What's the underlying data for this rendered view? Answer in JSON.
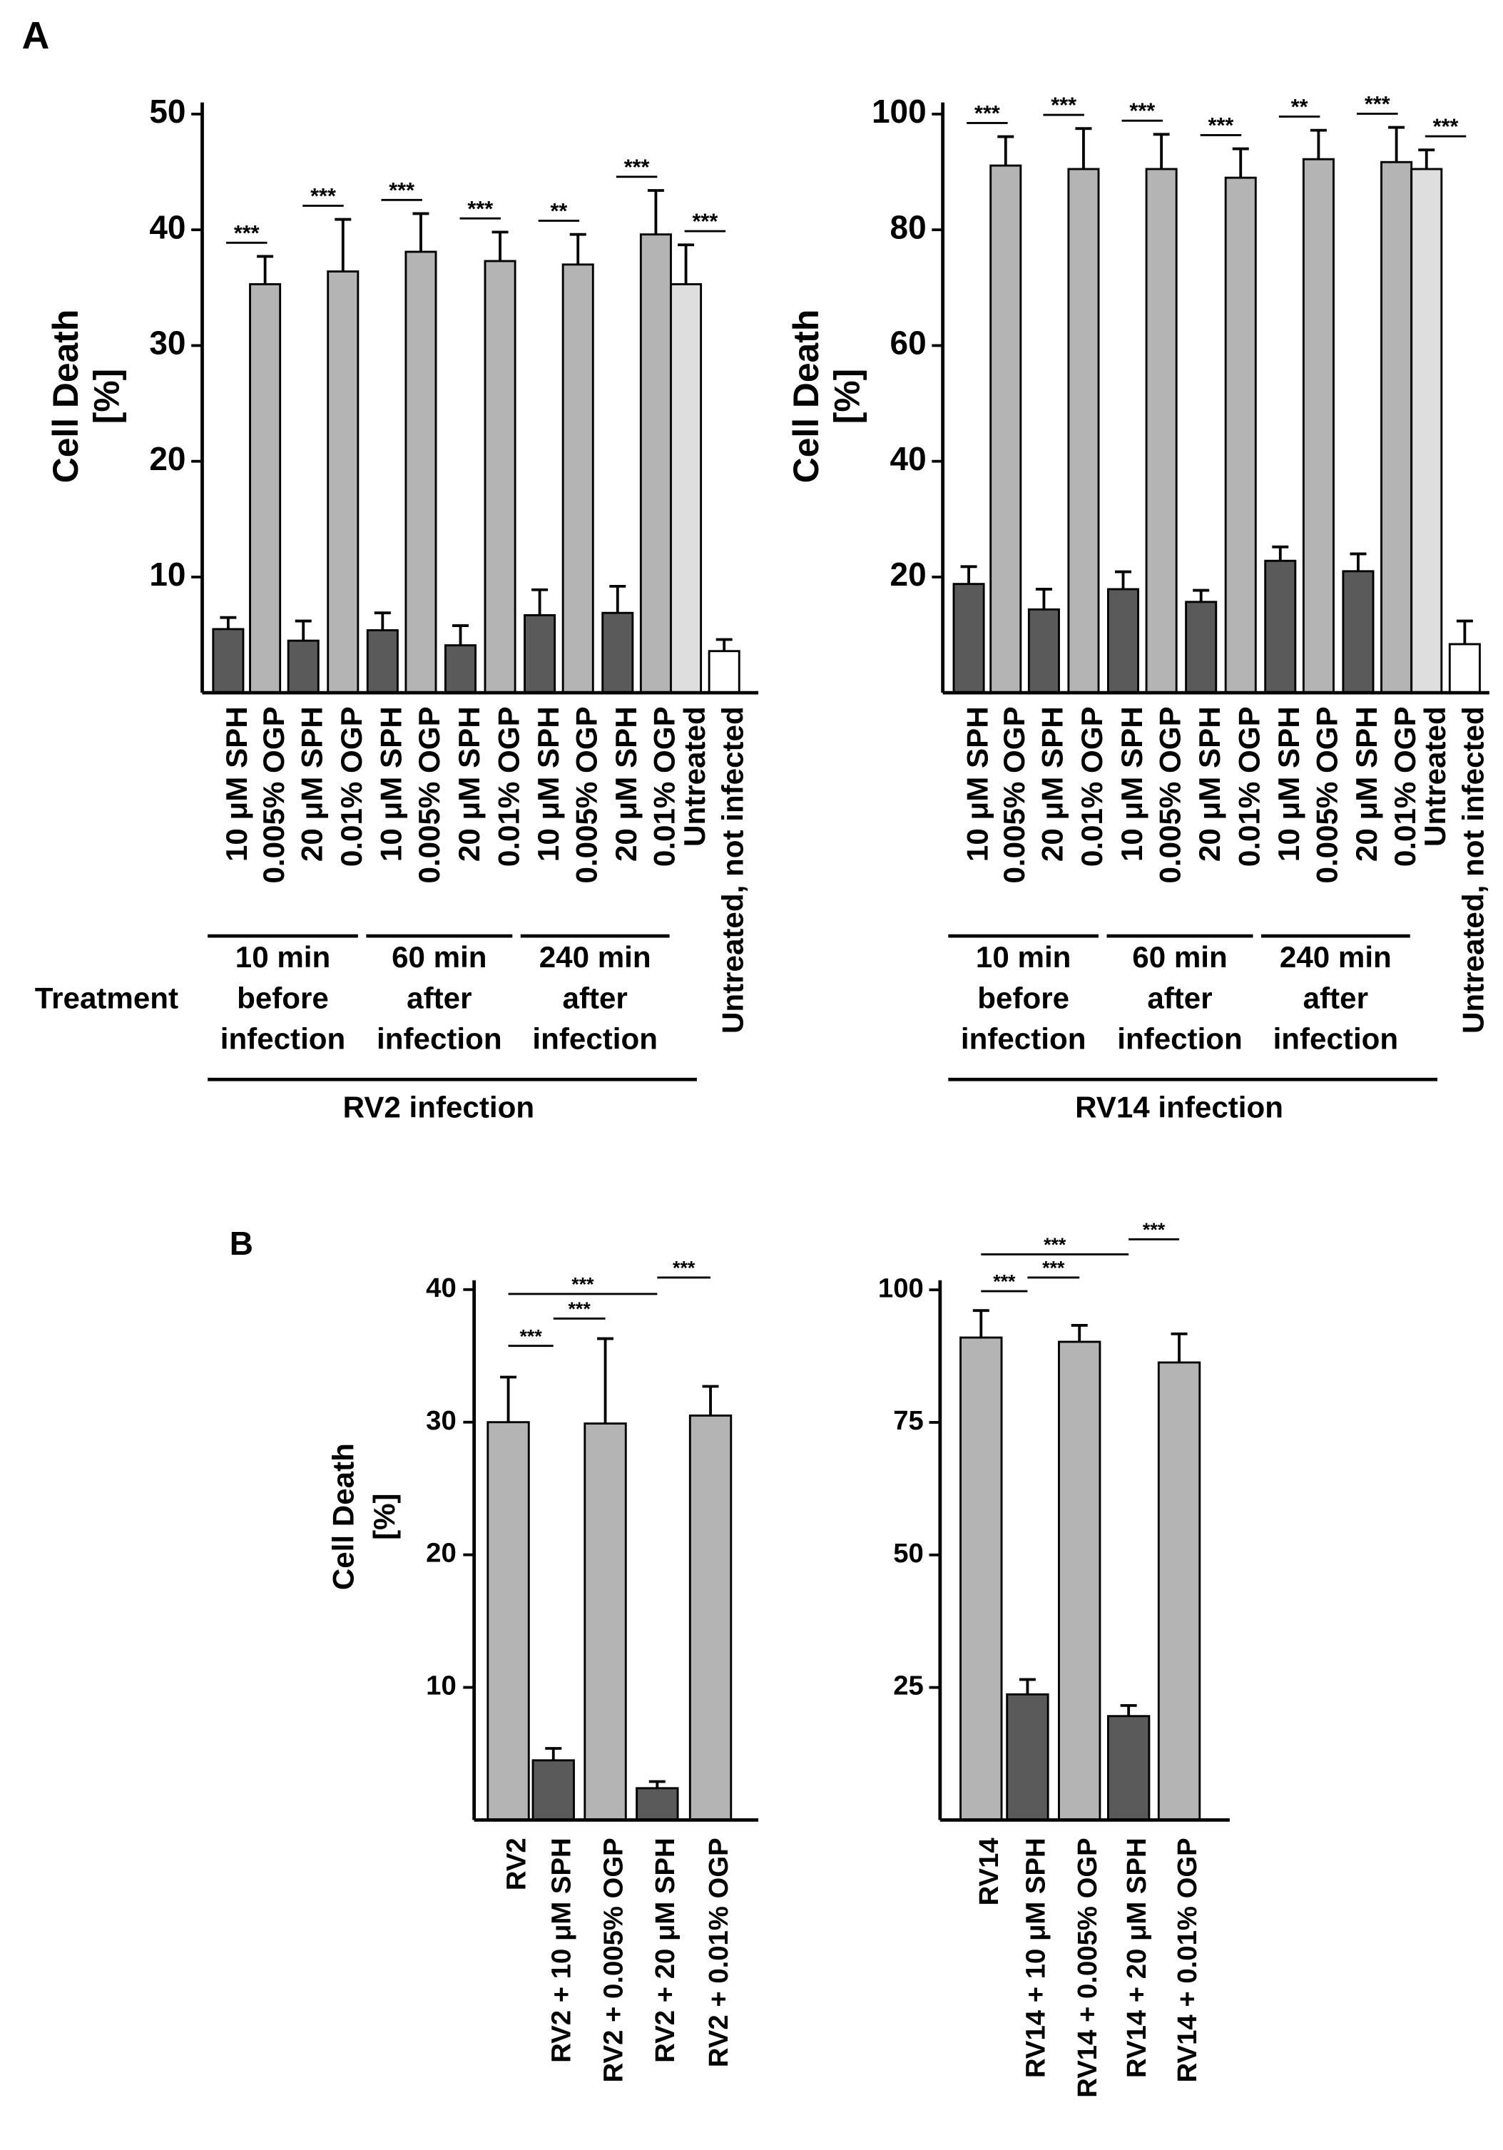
{
  "panel_labels": [
    "A",
    "B"
  ],
  "chart_data": [
    {
      "type": "bar",
      "y_label": [
        "Cell  Death",
        "[%]"
      ],
      "categories": [
        "10 μM SPH",
        "0.005% OGP",
        "20 μM SPH",
        "0.01% OGP",
        "10 μM SPH",
        "0.005% OGP",
        "20 μM SPH",
        "0.01% OGP",
        "10 μM SPH",
        "0.005% OGP",
        "20 μM SPH",
        "0.01% OGP",
        "Untreated",
        "Untreated, not infected"
      ],
      "values": [
        5.5,
        35.3,
        4.5,
        36.4,
        5.4,
        38.1,
        4.1,
        37.3,
        6.7,
        37.0,
        6.9,
        39.6,
        35.3,
        3.6
      ],
      "errors": [
        1.0,
        2.4,
        1.7,
        4.5,
        1.5,
        3.3,
        1.7,
        2.5,
        2.2,
        2.6,
        2.3,
        3.8,
        3.4,
        1.0
      ],
      "colors": [
        "#5a5a5a",
        "#b4b4b4",
        "#5a5a5a",
        "#b4b4b4",
        "#5a5a5a",
        "#b4b4b4",
        "#5a5a5a",
        "#b4b4b4",
        "#5a5a5a",
        "#b4b4b4",
        "#5a5a5a",
        "#b4b4b4",
        "#dedede",
        "#ffffff"
      ],
      "ylim": [
        0,
        51
      ],
      "yticks": [
        10,
        20,
        30,
        40,
        50
      ],
      "annotations": [
        "***",
        "***",
        "***",
        "***",
        "**",
        "***",
        "***"
      ],
      "row_label": "Treatment",
      "groups": [
        [
          "10 min",
          "before",
          "infection"
        ],
        [
          "60 min",
          "after",
          "infection"
        ],
        [
          "240 min",
          "after",
          "infection"
        ]
      ],
      "x_label": "RV2 infection"
    },
    {
      "type": "bar",
      "y_label": [
        "Cell  Death",
        "[%]"
      ],
      "categories": [
        "10 μM SPH",
        "0.005% OGP",
        "20 μM SPH",
        "0.01% OGP",
        "10 μM SPH",
        "0.005% OGP",
        "20 μM SPH",
        "0.01% OGP",
        "10 μM SPH",
        "0.005% OGP",
        "20 μM SPH",
        "0.01% OGP",
        "Untreated",
        "Untreated, not infected"
      ],
      "values": [
        18.8,
        91.1,
        14.4,
        90.5,
        17.9,
        90.5,
        15.7,
        89.0,
        22.8,
        92.2,
        21.0,
        91.7,
        90.5,
        8.4
      ],
      "errors": [
        3.0,
        5.0,
        3.5,
        7.0,
        3.0,
        6.0,
        2.0,
        5.0,
        2.4,
        5.0,
        3.0,
        6.0,
        3.3,
        4.0
      ],
      "colors": [
        "#5a5a5a",
        "#b4b4b4",
        "#5a5a5a",
        "#b4b4b4",
        "#5a5a5a",
        "#b4b4b4",
        "#5a5a5a",
        "#b4b4b4",
        "#5a5a5a",
        "#b4b4b4",
        "#5a5a5a",
        "#b4b4b4",
        "#dedede",
        "#ffffff"
      ],
      "ylim": [
        0,
        102
      ],
      "yticks": [
        20,
        40,
        60,
        80,
        100
      ],
      "annotations": [
        "***",
        "***",
        "***",
        "***",
        "**",
        "***",
        "***"
      ],
      "groups": [
        [
          "10 min",
          "before",
          "infection"
        ],
        [
          "60 min",
          "after",
          "infection"
        ],
        [
          "240 min",
          "after",
          "infection"
        ]
      ],
      "x_label": "RV14 infection"
    },
    {
      "type": "bar",
      "y_label": [
        "Cell  Death",
        "[%]"
      ],
      "categories": [
        "RV2",
        "RV2 + 10 μM SPH",
        "RV2 + 0.005% OGP",
        "RV2 + 20 μM SPH",
        "RV2 + 0.01% OGP"
      ],
      "values": [
        30.0,
        4.5,
        29.9,
        2.4,
        30.5
      ],
      "errors": [
        3.4,
        0.9,
        6.4,
        0.5,
        2.2
      ],
      "colors": [
        "#b4b4b4",
        "#5a5a5a",
        "#b4b4b4",
        "#5a5a5a",
        "#b4b4b4"
      ],
      "ylim": [
        0,
        40.7
      ],
      "yticks": [
        10,
        20,
        30,
        40
      ],
      "annotations": [
        "***",
        "***",
        "***",
        "***"
      ]
    },
    {
      "type": "bar",
      "categories": [
        "RV14",
        "RV14 + 10 μM SPH",
        "RV14 + 0.005% OGP",
        "RV14 + 20 μM SPH",
        "RV14 + 0.01% OGP"
      ],
      "values": [
        91.0,
        23.7,
        90.2,
        19.6,
        86.3
      ],
      "errors": [
        5.1,
        2.8,
        3.1,
        2.0,
        5.4
      ],
      "colors": [
        "#b4b4b4",
        "#5a5a5a",
        "#b4b4b4",
        "#5a5a5a",
        "#b4b4b4"
      ],
      "ylim": [
        0,
        101.8
      ],
      "yticks": [
        25,
        50,
        75,
        100
      ],
      "annotations": [
        "***",
        "***",
        "***",
        "***"
      ]
    }
  ]
}
